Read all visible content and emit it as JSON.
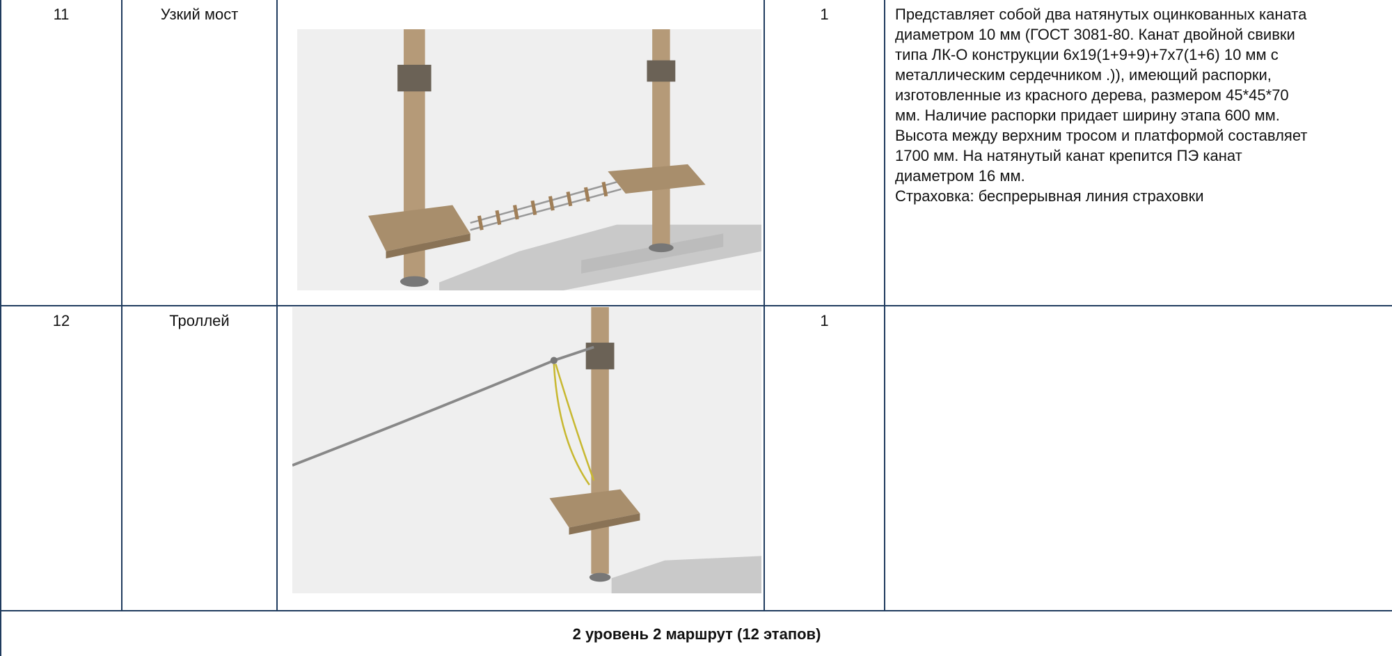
{
  "table": {
    "rows": [
      {
        "number": "11",
        "name": "Узкий  мост",
        "quantity": "1",
        "description": [
          "Представляет собой два натянутых оцинкованных каната",
          "диаметром 10 мм (ГОСТ 3081-80. Канат двойной свивки",
          "типа ЛК-О конструкции 6х19(1+9+9)+7х7(1+6) 10 мм с",
          "металлическим сердечником .)), имеющий распорки,",
          "изготовленные из красного дерева, размером 45*45*70",
          "мм. Наличие распорки придает ширину этапа 600 мм.",
          "Высота между верхним тросом и платформой составляет",
          "1700 мм. На натянутый канат крепится ПЭ канат",
          "диаметром 16 мм.",
          "Страховка: беспрерывная линия страховки"
        ]
      },
      {
        "number": "12",
        "name": "Троллей",
        "quantity": "1",
        "description": []
      }
    ],
    "footer": "2 уровень 2 маршрут (12 этапов)"
  }
}
